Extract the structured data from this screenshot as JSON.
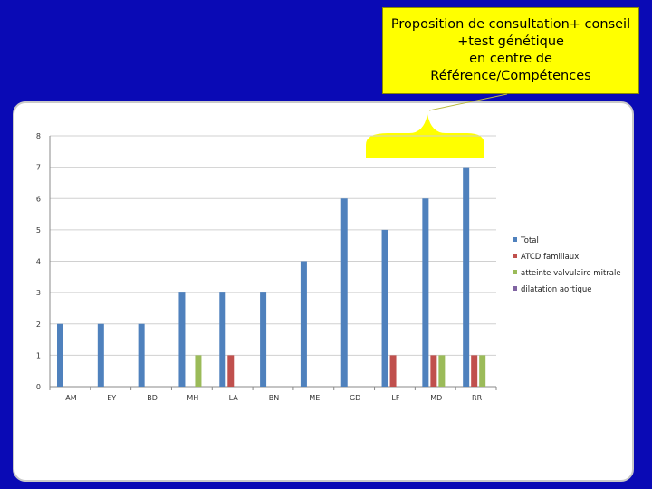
{
  "callout": {
    "lines": [
      "Proposition de consultation+ conseil",
      "+test génétique",
      "en centre de",
      "Référence/Compétences"
    ]
  },
  "colors": {
    "background": "#0a0ab5",
    "callout": "#ffff00",
    "total": "#4f81bd",
    "atcd": "#c0504d",
    "valvulaire": "#9bbb59",
    "dilatation": "#8064a2"
  },
  "chart_data": {
    "type": "bar",
    "categories": [
      "AM",
      "EY",
      "BD",
      "MH",
      "LA",
      "BN",
      "ME",
      "GD",
      "LF",
      "MD",
      "RR"
    ],
    "series": [
      {
        "name": "Total",
        "values": [
          2,
          2,
          2,
          3,
          3,
          3,
          4,
          6,
          5,
          6,
          7
        ]
      },
      {
        "name": "ATCD familiaux",
        "values": [
          0,
          0,
          0,
          0,
          1,
          0,
          0,
          0,
          1,
          1,
          1
        ]
      },
      {
        "name": "atteinte valvulaire mitrale",
        "values": [
          0,
          0,
          0,
          1,
          0,
          0,
          0,
          0,
          0,
          1,
          1
        ]
      },
      {
        "name": "dilatation aortique",
        "values": [
          0,
          0,
          0,
          0,
          0,
          0,
          0,
          0,
          0,
          0,
          0
        ]
      }
    ],
    "ylim": [
      0,
      8
    ],
    "yticks": [
      "0",
      "1",
      "2",
      "3",
      "4",
      "5",
      "6",
      "7",
      "8"
    ],
    "grid": true,
    "legend": "right"
  }
}
